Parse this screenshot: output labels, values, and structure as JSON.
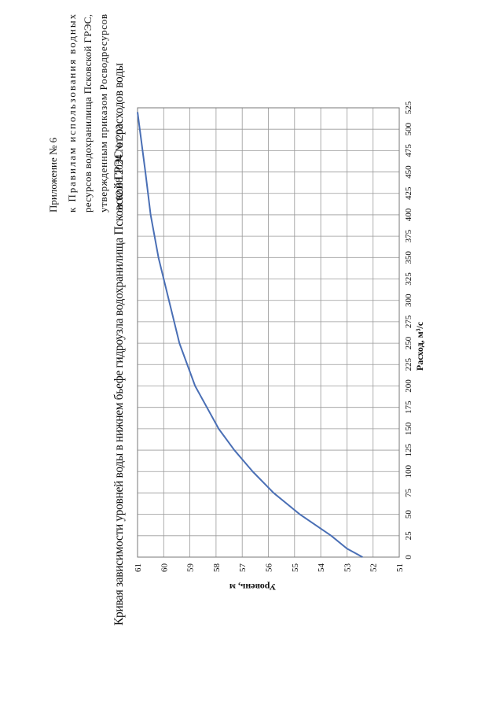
{
  "header_lines": [
    "Приложение № 6",
    "к Правилам использования водных",
    "ресурсов водохранилища Псковской ГРЭС,",
    "утвержденным приказом Росводресурсов",
    "от 02.08.2024 № 203"
  ],
  "chart_data": {
    "type": "line",
    "title": "Кривая зависимости уровней воды в нижнем бьефе гидроузла водохранилища Псковской ГРЭС от расходов воды",
    "x_label": {
      "value": "Расход, м³/с",
      "label": "Расход, м³/с"
    },
    "y_label": "Уровень, м",
    "x": [
      0,
      10,
      25,
      50,
      75,
      100,
      125,
      150,
      200,
      250,
      300,
      350,
      400,
      450,
      520
    ],
    "series": [
      {
        "name": "Уровень",
        "color": "#4a6fb5",
        "values": [
          52.4,
          53.0,
          53.6,
          54.8,
          55.8,
          56.6,
          57.3,
          57.9,
          58.8,
          59.4,
          59.8,
          60.2,
          60.5,
          60.7,
          61.0
        ]
      }
    ],
    "xlim": [
      0,
      525
    ],
    "xticks": [
      0,
      25,
      50,
      75,
      100,
      125,
      150,
      175,
      200,
      225,
      250,
      275,
      300,
      325,
      350,
      375,
      400,
      425,
      450,
      475,
      500,
      525
    ],
    "ylim": [
      51,
      61
    ],
    "yticks": [
      51,
      52,
      53,
      54,
      55,
      56,
      57,
      58,
      59,
      60,
      61
    ],
    "grid": true
  }
}
